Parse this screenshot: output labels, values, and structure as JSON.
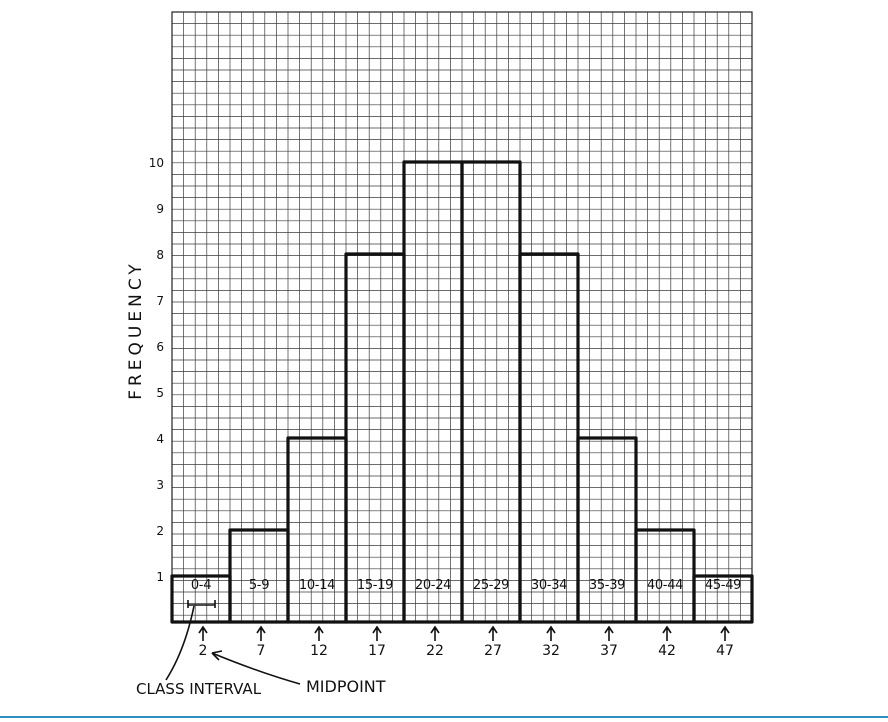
{
  "chart_data": {
    "type": "bar",
    "title": "",
    "ylabel": "FREQUENCY",
    "xlabel": "",
    "categories": [
      "0-4",
      "5-9",
      "10-14",
      "15-19",
      "20-24",
      "25-29",
      "30-34",
      "35-39",
      "40-44",
      "45-49"
    ],
    "midpoints": [
      "2",
      "7",
      "12",
      "17",
      "22",
      "27",
      "32",
      "37",
      "42",
      "47"
    ],
    "values": [
      1,
      2,
      4,
      8,
      10,
      10,
      8,
      4,
      2,
      1
    ],
    "ylim": [
      0,
      10
    ],
    "yticks": [
      "1",
      "2",
      "3",
      "4",
      "5",
      "6",
      "7",
      "8",
      "9",
      "10"
    ],
    "grid": true,
    "annotations": {
      "class_interval": "CLASS INTERVAL",
      "midpoint": "MIDPOINT"
    },
    "colors": {
      "bar_outline": "#111111",
      "grid": "#3a3a3a",
      "accent_rule": "#2f8fc0"
    }
  }
}
